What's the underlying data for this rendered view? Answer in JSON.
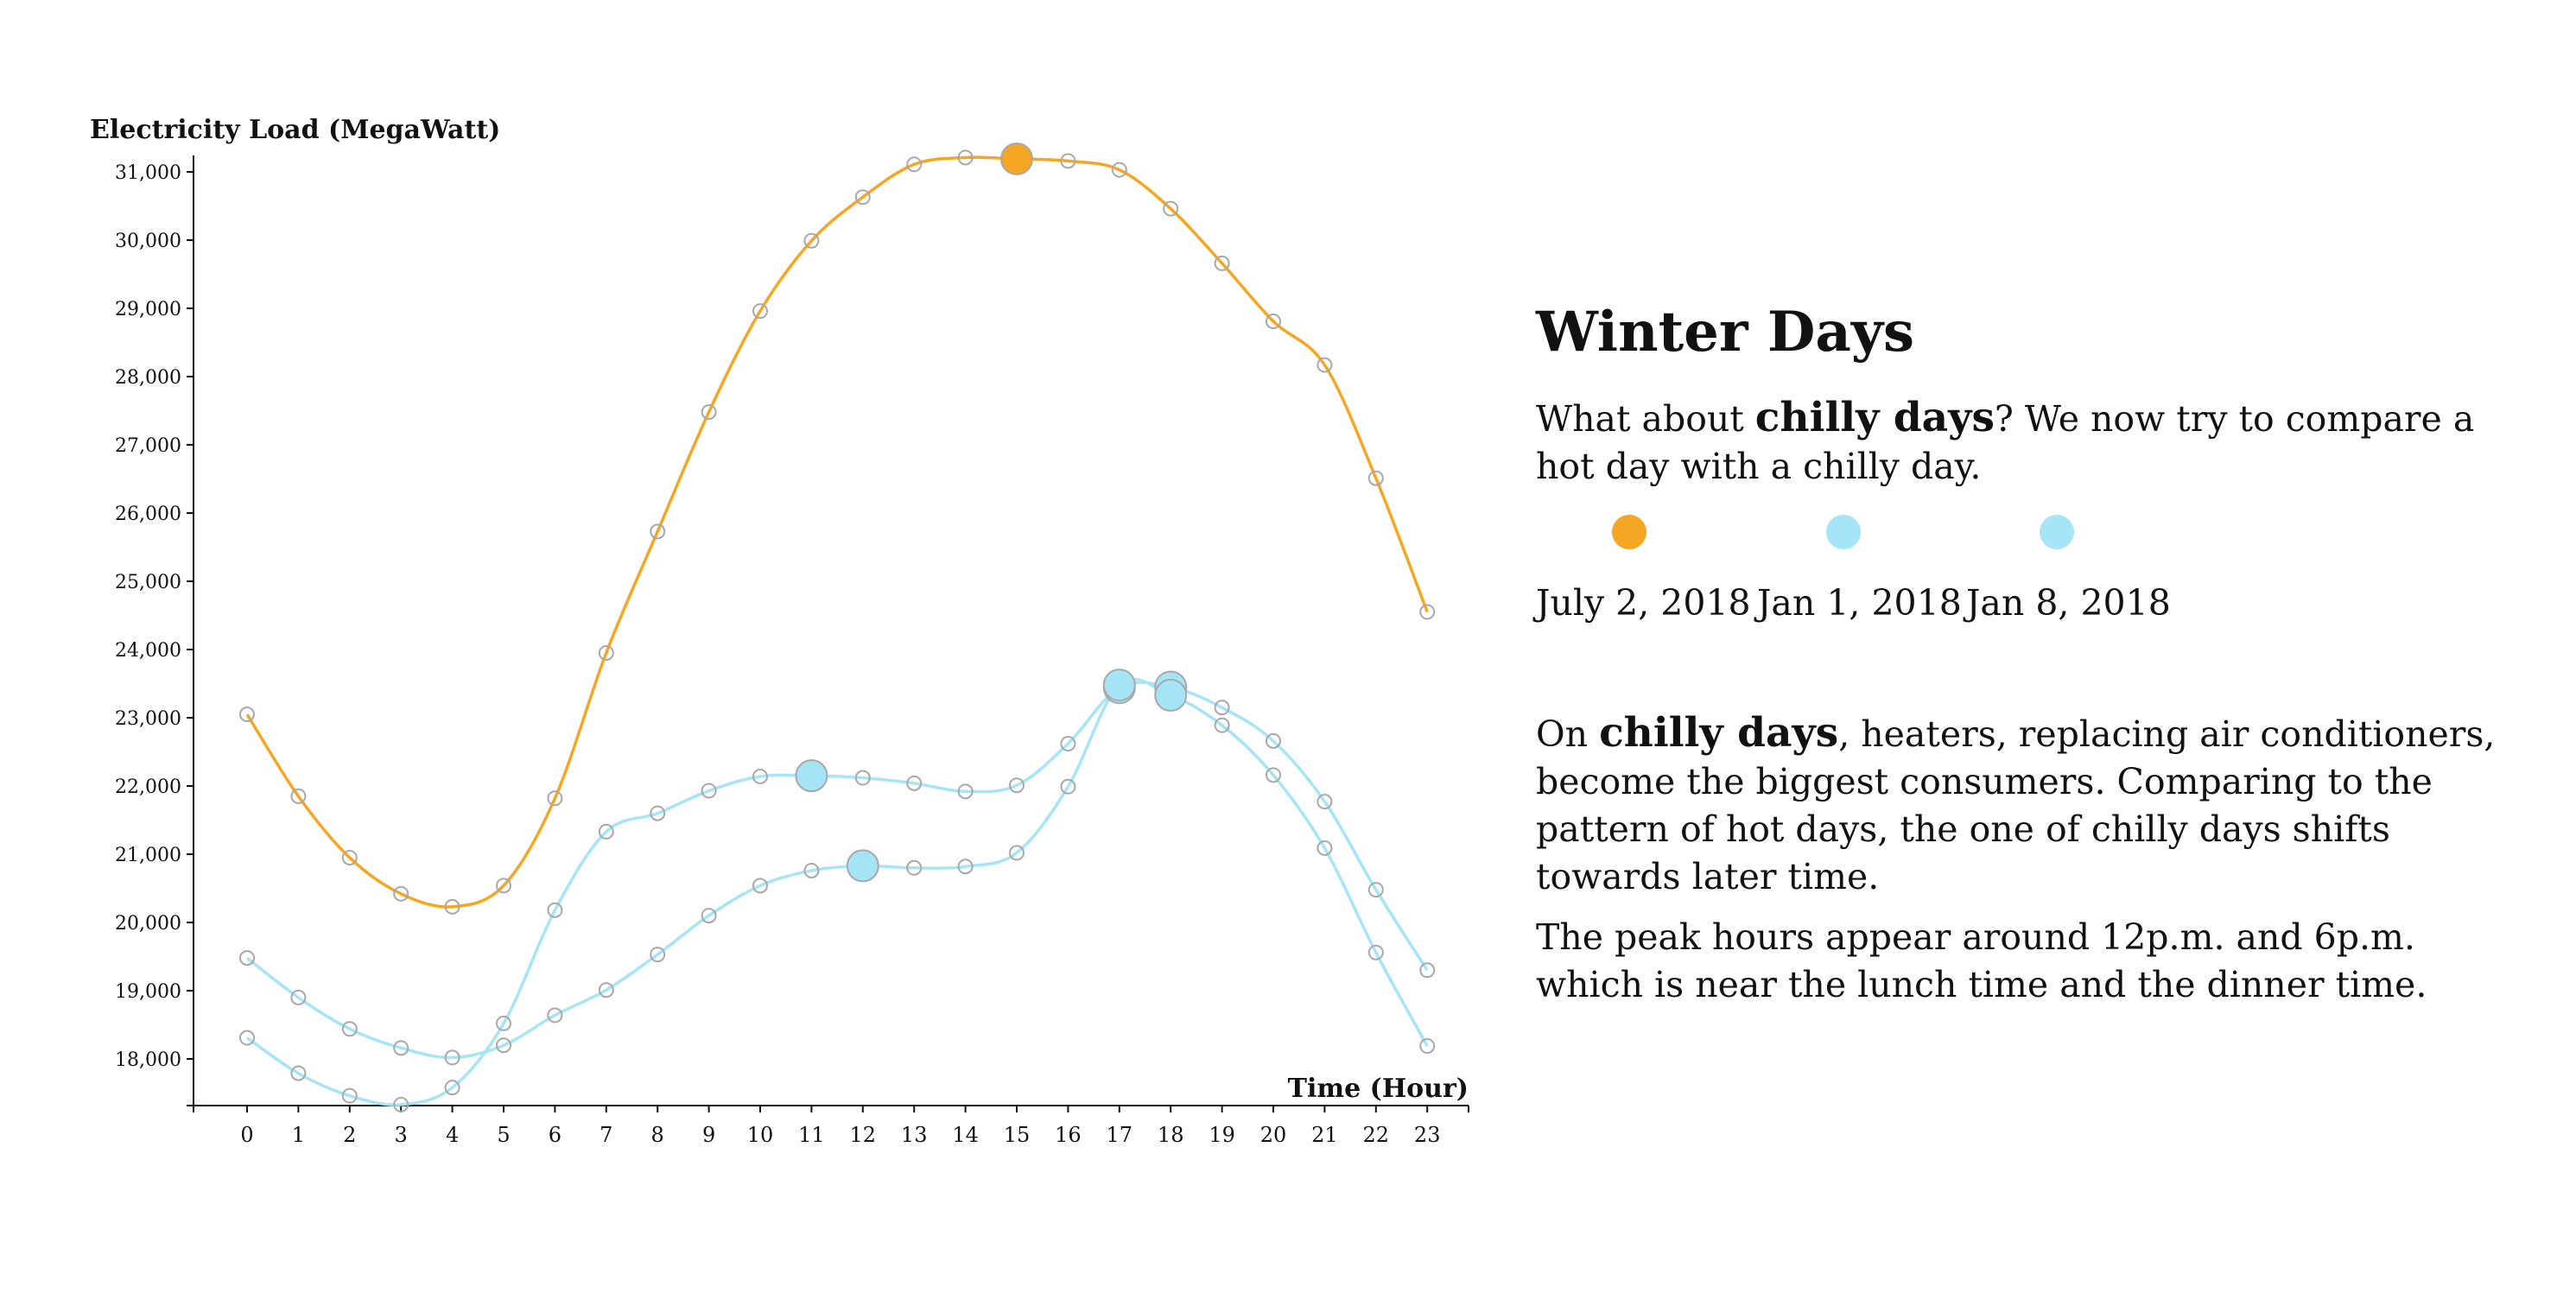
{
  "colors": {
    "summer": "#f5a623",
    "winter": "#a6e4f7",
    "marker_stroke": "#a8a8a8",
    "axis": "#111111"
  },
  "chart_data": {
    "type": "line",
    "xlabel": "Time (Hour)",
    "ylabel": "Electricity Load (MegaWatt)",
    "x": [
      0,
      1,
      2,
      3,
      4,
      5,
      6,
      7,
      8,
      9,
      10,
      11,
      12,
      13,
      14,
      15,
      16,
      17,
      18,
      19,
      20,
      21,
      22,
      23
    ],
    "ylim": [
      17300,
      31300
    ],
    "yticks": [
      18000,
      19000,
      20000,
      21000,
      22000,
      23000,
      24000,
      25000,
      26000,
      27000,
      28000,
      29000,
      30000,
      31000
    ],
    "ytick_labels": [
      "18,000",
      "19,000",
      "20,000",
      "21,000",
      "22,000",
      "23,000",
      "24,000",
      "25,000",
      "26,000",
      "27,000",
      "28,000",
      "29,000",
      "30,000",
      "31,000"
    ],
    "xtick_labels": [
      "0",
      "1",
      "2",
      "3",
      "4",
      "5",
      "6",
      "7",
      "8",
      "9",
      "10",
      "11",
      "12",
      "13",
      "14",
      "15",
      "16",
      "17",
      "18",
      "19",
      "20",
      "21",
      "22",
      "23"
    ],
    "grid": false,
    "series": [
      {
        "name": "July 2, 2018",
        "color": "#f5a623",
        "values": [
          23050,
          21850,
          20950,
          20420,
          20230,
          20540,
          21820,
          23950,
          25730,
          27480,
          28960,
          29990,
          30630,
          31110,
          31210,
          31190,
          31160,
          31030,
          30460,
          29660,
          28810,
          28170,
          26510,
          24550
        ],
        "highlight_index": 15
      },
      {
        "name": "Jan 1, 2018",
        "color": "#a6e4f7",
        "values": [
          18310,
          17790,
          17460,
          17330,
          17580,
          18520,
          20180,
          21330,
          21600,
          21930,
          22140,
          22150,
          22120,
          22040,
          21920,
          22010,
          22620,
          23440,
          23450,
          23150,
          22660,
          21770,
          20480,
          19300
        ],
        "highlight_index": 11
      },
      {
        "name": "Jan 8, 2018",
        "color": "#a6e4f7",
        "values": [
          19480,
          18900,
          18440,
          18160,
          18020,
          18200,
          18640,
          19010,
          19530,
          20100,
          20540,
          20760,
          20830,
          20800,
          20820,
          21020,
          21990,
          23480,
          23330,
          22890,
          22160,
          21090,
          19560,
          18190
        ],
        "highlight_index": 12
      }
    ],
    "highlight_hours": [
      17,
      18
    ]
  },
  "panel": {
    "title": "Winter Days",
    "p1_before": "What about ",
    "p1_bold": "chilly days",
    "p1_after": "? We now try to compare a hot day with a chilly day.",
    "legend": [
      {
        "label": "July 2, 2018",
        "color": "#f5a623"
      },
      {
        "label": "Jan 1, 2018",
        "color": "#a6e4f7"
      },
      {
        "label": "Jan 8, 2018",
        "color": "#a6e4f7"
      }
    ],
    "p2_before": "On ",
    "p2_bold": "chilly days",
    "p2_after": ", heaters, replacing air conditioners, become the biggest consumers. Comparing to the pattern of hot days, the one of chilly days shifts towards later time.",
    "p3": "The peak hours appear around 12p.m. and 6p.m. which is near the lunch time and the dinner time."
  }
}
